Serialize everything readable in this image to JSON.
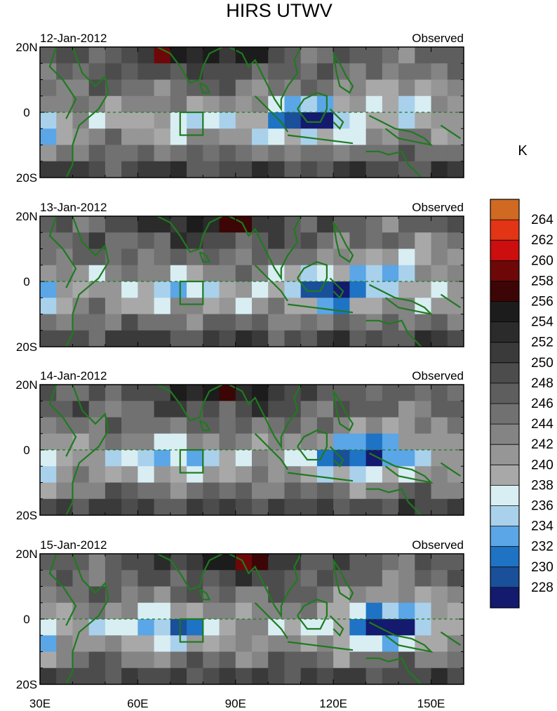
{
  "chart_data": {
    "type": "heatmap",
    "title": "HIRS UTWV",
    "colorbar_unit": "K",
    "colorbar": {
      "levels": [
        228,
        230,
        232,
        234,
        236,
        238,
        240,
        242,
        244,
        246,
        248,
        250,
        252,
        254,
        256,
        258,
        260,
        262,
        264
      ],
      "colors": [
        "#141a6e",
        "#1a4f9a",
        "#1f73c4",
        "#5aa6e6",
        "#a9d1ec",
        "#d8eef2",
        "#a8a8a8",
        "#969696",
        "#848484",
        "#717171",
        "#5e5e5e",
        "#4c4c4c",
        "#3a3a3a",
        "#2b2b2b",
        "#1c1c1c",
        "#3c0606",
        "#6e0808",
        "#cc0e0e",
        "#e23516",
        "#d06a22"
      ]
    },
    "x_axis": {
      "range": [
        30,
        160
      ],
      "ticks": [
        30,
        60,
        90,
        120,
        150
      ],
      "tick_labels": [
        "30E",
        "60E",
        "90E",
        "120E",
        "150E"
      ]
    },
    "y_axis": {
      "range": [
        -20,
        20
      ],
      "ticks": [
        20,
        0,
        -20
      ],
      "tick_labels": [
        "20N",
        "0",
        "20S"
      ]
    },
    "box_region": {
      "lon": [
        73,
        80
      ],
      "lat": [
        -7,
        0
      ]
    },
    "panels": [
      {
        "date": "12-Jan-2012",
        "label": "Observed"
      },
      {
        "date": "13-Jan-2012",
        "label": "Observed"
      },
      {
        "date": "14-Jan-2012",
        "label": "Observed"
      },
      {
        "date": "15-Jan-2012",
        "label": "Observed"
      }
    ]
  }
}
